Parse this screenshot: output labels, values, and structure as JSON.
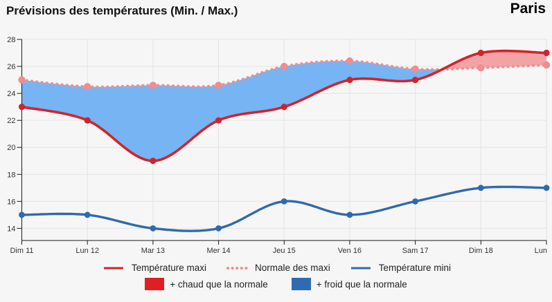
{
  "header": {
    "title": "Prévisions des températures (Min. / Max.)",
    "location": "Paris"
  },
  "chart_data": {
    "type": "line",
    "categories": [
      "Dim 11",
      "Lun 12",
      "Mar 13",
      "Mer 14",
      "Jeu 15",
      "Ven 16",
      "Sam 17",
      "Dim 18",
      "Lun"
    ],
    "series": [
      {
        "name": "Température maxi",
        "color": "#d2232a",
        "style": "solid",
        "values": [
          23,
          22,
          19,
          22,
          23,
          25,
          25,
          27,
          27
        ]
      },
      {
        "name": "Normale des maxi",
        "color": "#ef8e8e",
        "style": "dotted",
        "values": [
          25,
          24.5,
          24.6,
          24.6,
          26,
          26.4,
          25.8,
          25.9,
          26.1
        ]
      },
      {
        "name": "Température mini",
        "color": "#2e6aad",
        "style": "solid",
        "values": [
          15,
          15,
          14,
          14,
          16,
          15,
          16,
          17,
          17
        ]
      }
    ],
    "bands": {
      "warmer": {
        "label": "+ chaud que la normale",
        "swatch_color": "#df1f24",
        "area_color": "#f2a3a6"
      },
      "colder": {
        "label": "+ froid que la normale",
        "swatch_color": "#2d6cb4",
        "area_color": "#76b4f4"
      }
    },
    "yticks": [
      14,
      16,
      18,
      20,
      22,
      24,
      26,
      28
    ],
    "ylim": [
      13.1,
      28
    ],
    "grid": true,
    "grid_color": "#e3e3e3",
    "axis_color": "#1a1a1a",
    "legend_position": "bottom"
  }
}
